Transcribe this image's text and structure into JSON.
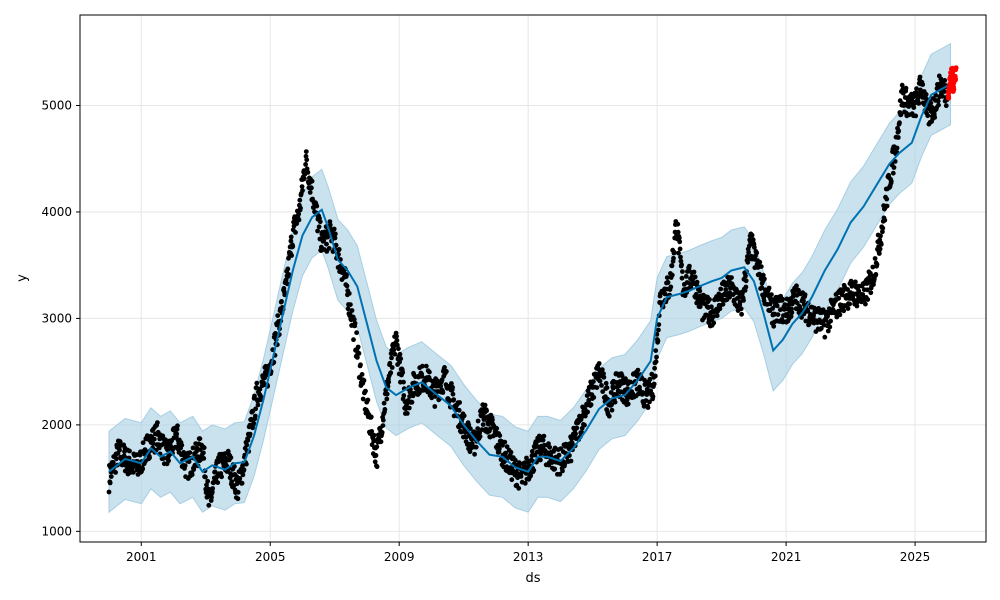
{
  "chart_data": {
    "type": "line",
    "title": "",
    "xlabel": "ds",
    "ylabel": "y",
    "xlim": [
      1999.1,
      2027.2
    ],
    "ylim": [
      900,
      5850
    ],
    "grid": true,
    "x_ticks": [
      {
        "value": 2001,
        "label": "2001"
      },
      {
        "value": 2005,
        "label": "2005"
      },
      {
        "value": 2009,
        "label": "2009"
      },
      {
        "value": 2013,
        "label": "2013"
      },
      {
        "value": 2017,
        "label": "2017"
      },
      {
        "value": 2021,
        "label": "2021"
      },
      {
        "value": 2025,
        "label": "2025"
      }
    ],
    "y_ticks": [
      {
        "value": 1000,
        "label": "1000"
      },
      {
        "value": 2000,
        "label": "2000"
      },
      {
        "value": 3000,
        "label": "3000"
      },
      {
        "value": 4000,
        "label": "4000"
      },
      {
        "value": 5000,
        "label": "5000"
      }
    ],
    "colors": {
      "observed": "#000000",
      "forecast": "#0072B2",
      "interval": "#A6CEE3",
      "recent": "#FF0000",
      "grid": "#E6E6E6"
    },
    "series": [
      {
        "role": "forecast",
        "kind": "line",
        "x": [
          2000.0,
          2000.5,
          2001.0,
          2001.3,
          2001.6,
          2001.9,
          2002.2,
          2002.6,
          2002.9,
          2003.2,
          2003.6,
          2003.9,
          2004.2,
          2004.5,
          2004.8,
          2005.1,
          2005.4,
          2005.7,
          2006.0,
          2006.3,
          2006.6,
          2006.8,
          2007.1,
          2007.4,
          2007.7,
          2008.0,
          2008.3,
          2008.6,
          2008.9,
          2009.3,
          2009.7,
          2010.1,
          2010.6,
          2011.0,
          2011.4,
          2011.8,
          2012.2,
          2012.6,
          2013.0,
          2013.3,
          2013.6,
          2014.0,
          2014.4,
          2014.8,
          2015.2,
          2015.6,
          2016.0,
          2016.4,
          2016.8,
          2017.0,
          2017.3,
          2017.7,
          2018.0,
          2018.3,
          2018.7,
          2019.0,
          2019.3,
          2019.7,
          2020.0,
          2020.3,
          2020.6,
          2020.9,
          2021.2,
          2021.5,
          2021.8,
          2022.2,
          2022.6,
          2023.0,
          2023.4,
          2023.8,
          2024.2,
          2024.5,
          2024.9,
          2025.2,
          2025.5,
          2025.8,
          2026.1
        ],
        "y": [
          1560,
          1680,
          1640,
          1780,
          1700,
          1750,
          1640,
          1700,
          1560,
          1620,
          1580,
          1640,
          1650,
          1900,
          2250,
          2650,
          3050,
          3450,
          3780,
          3950,
          4020,
          3850,
          3550,
          3450,
          3300,
          2950,
          2600,
          2350,
          2280,
          2350,
          2400,
          2300,
          2180,
          2000,
          1850,
          1720,
          1700,
          1600,
          1560,
          1700,
          1700,
          1660,
          1780,
          1950,
          2150,
          2250,
          2280,
          2420,
          2600,
          3000,
          3200,
          3230,
          3260,
          3300,
          3350,
          3380,
          3450,
          3480,
          3350,
          3050,
          2700,
          2800,
          2950,
          3050,
          3200,
          3450,
          3650,
          3900,
          4050,
          4250,
          4450,
          4550,
          4650,
          4900,
          5100,
          5150,
          5200
        ]
      },
      {
        "role": "observed",
        "kind": "scatter",
        "x": [
          2000.0,
          2000.3,
          2000.6,
          2000.9,
          2001.2,
          2001.5,
          2001.8,
          2002.1,
          2002.4,
          2002.7,
          2002.9,
          2003.1,
          2003.4,
          2003.7,
          2004.0,
          2004.3,
          2004.6,
          2004.9,
          2005.1,
          2005.3,
          2005.5,
          2005.7,
          2005.9,
          2006.1,
          2006.3,
          2006.6,
          2006.9,
          2007.1,
          2007.3,
          2007.6,
          2007.9,
          2008.1,
          2008.3,
          2008.6,
          2008.9,
          2009.2,
          2009.5,
          2009.8,
          2010.1,
          2010.4,
          2010.7,
          2011.0,
          2011.3,
          2011.6,
          2011.9,
          2012.2,
          2012.5,
          2012.8,
          2013.1,
          2013.4,
          2013.7,
          2014.0,
          2014.3,
          2014.6,
          2014.9,
          2015.2,
          2015.5,
          2015.8,
          2016.1,
          2016.4,
          2016.7,
          2016.9,
          2017.1,
          2017.4,
          2017.6,
          2017.8,
          2018.1,
          2018.4,
          2018.7,
          2019.0,
          2019.3,
          2019.6,
          2019.9,
          2020.1,
          2020.3,
          2020.6,
          2020.8,
          2021.0,
          2021.3,
          2021.6,
          2021.9,
          2022.2,
          2022.5,
          2022.8,
          2023.1,
          2023.4,
          2023.7,
          2024.0,
          2024.2,
          2024.4,
          2024.6,
          2024.8,
          2025.0,
          2025.2,
          2025.4,
          2025.6,
          2025.8,
          2026.0
        ],
        "y": [
          1500,
          1750,
          1650,
          1600,
          1800,
          1900,
          1700,
          1900,
          1600,
          1700,
          1800,
          1250,
          1600,
          1650,
          1400,
          1800,
          2300,
          2450,
          2700,
          3000,
          3300,
          3800,
          4000,
          4500,
          4200,
          3700,
          3800,
          3600,
          3400,
          2900,
          2300,
          2000,
          1700,
          2300,
          2800,
          2200,
          2400,
          2450,
          2300,
          2450,
          2200,
          2000,
          1800,
          2100,
          1950,
          1750,
          1600,
          1500,
          1650,
          1800,
          1700,
          1650,
          1750,
          2000,
          2250,
          2500,
          2200,
          2400,
          2300,
          2400,
          2250,
          2400,
          3200,
          3300,
          3900,
          3300,
          3400,
          3100,
          3050,
          3200,
          3300,
          3100,
          3700,
          3500,
          3300,
          3050,
          3100,
          3050,
          3200,
          3100,
          3000,
          2950,
          3100,
          3200,
          3250,
          3200,
          3400,
          3900,
          4300,
          4600,
          5100,
          5000,
          5000,
          5200,
          4900,
          5000,
          5200,
          5100
        ]
      },
      {
        "role": "recent",
        "kind": "scatter",
        "x": [
          2026.05,
          2026.1,
          2026.15,
          2026.2,
          2026.25
        ],
        "y": [
          5150,
          5250,
          5300,
          5200,
          5280
        ]
      }
    ]
  }
}
